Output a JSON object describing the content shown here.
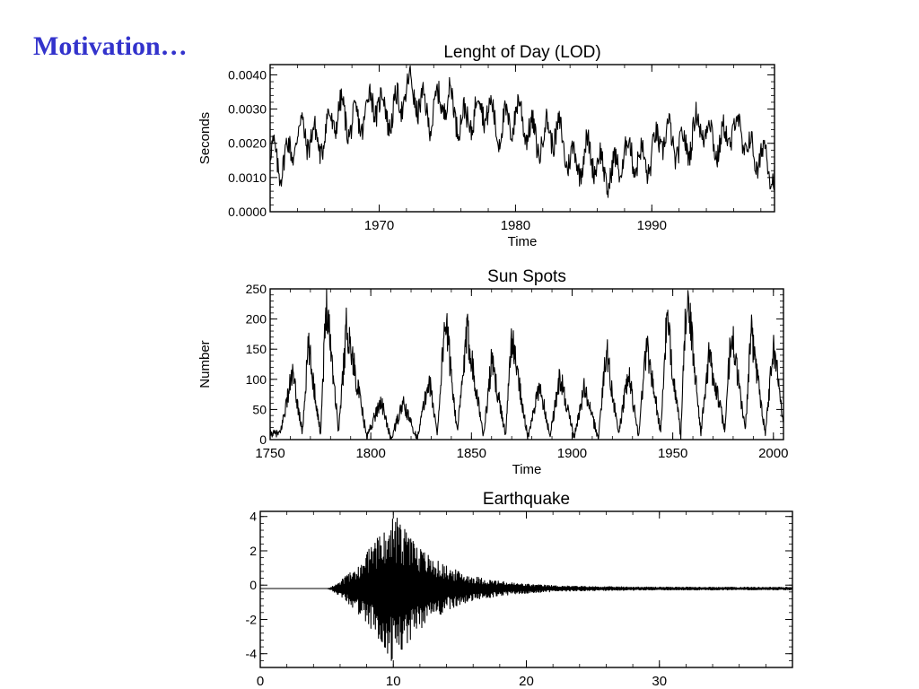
{
  "slide": {
    "title": "Motivation…"
  },
  "chart_data": [
    {
      "type": "line",
      "title": "Lenght of Day (LOD)",
      "xlabel": "Time",
      "ylabel": "Seconds",
      "xlim": [
        1962,
        1999
      ],
      "ylim": [
        0.0,
        0.0043
      ],
      "xticks": [
        1970,
        1980,
        1990
      ],
      "yticks": [
        0.0,
        0.001,
        0.002,
        0.003,
        0.004
      ],
      "ytick_labels": [
        "0.0000",
        "0.0010",
        "0.0020",
        "0.0030",
        "0.0040"
      ],
      "grid": false,
      "series": [
        {
          "x": [
            1962,
            1964,
            1966,
            1968,
            1970,
            1972,
            1974,
            1976,
            1978,
            1980,
            1982,
            1984,
            1986,
            1988,
            1990,
            1992,
            1994,
            1996,
            1998,
            1999
          ],
          "values": [
            0.0015,
            0.002,
            0.0024,
            0.0028,
            0.003,
            0.0033,
            0.0031,
            0.0029,
            0.0028,
            0.0026,
            0.0023,
            0.0018,
            0.0013,
            0.0014,
            0.0018,
            0.0021,
            0.0023,
            0.0022,
            0.0018,
            0.0008
          ],
          "amplitude": 0.0008,
          "color": "#000000"
        }
      ]
    },
    {
      "type": "line",
      "title": "Sun Spots",
      "xlabel": "Time",
      "ylabel": "Number",
      "xlim": [
        1750,
        2005
      ],
      "ylim": [
        0,
        250
      ],
      "xticks": [
        1750,
        1800,
        1850,
        1900,
        1950,
        2000
      ],
      "yticks": [
        0,
        50,
        100,
        150,
        200,
        250
      ],
      "grid": false,
      "series": [
        {
          "peaks": [
            {
              "x": 1761,
              "y": 110
            },
            {
              "x": 1769,
              "y": 155
            },
            {
              "x": 1778,
              "y": 235
            },
            {
              "x": 1788,
              "y": 190
            },
            {
              "x": 1805,
              "y": 65
            },
            {
              "x": 1816,
              "y": 60
            },
            {
              "x": 1829,
              "y": 100
            },
            {
              "x": 1837,
              "y": 205
            },
            {
              "x": 1848,
              "y": 180
            },
            {
              "x": 1860,
              "y": 130
            },
            {
              "x": 1870,
              "y": 170
            },
            {
              "x": 1884,
              "y": 90
            },
            {
              "x": 1894,
              "y": 105
            },
            {
              "x": 1906,
              "y": 85
            },
            {
              "x": 1917,
              "y": 150
            },
            {
              "x": 1928,
              "y": 110
            },
            {
              "x": 1937,
              "y": 160
            },
            {
              "x": 1947,
              "y": 200
            },
            {
              "x": 1957,
              "y": 250
            },
            {
              "x": 1968,
              "y": 140
            },
            {
              "x": 1979,
              "y": 185
            },
            {
              "x": 1989,
              "y": 180
            },
            {
              "x": 2000,
              "y": 160
            }
          ],
          "minima": [
            {
              "x": 1755,
              "y": 10
            },
            {
              "x": 1766,
              "y": 12
            },
            {
              "x": 1775,
              "y": 10
            },
            {
              "x": 1784,
              "y": 12
            },
            {
              "x": 1798,
              "y": 4
            },
            {
              "x": 1810,
              "y": 0
            },
            {
              "x": 1823,
              "y": 2
            },
            {
              "x": 1833,
              "y": 10
            },
            {
              "x": 1843,
              "y": 12
            },
            {
              "x": 1856,
              "y": 5
            },
            {
              "x": 1867,
              "y": 8
            },
            {
              "x": 1878,
              "y": 3
            },
            {
              "x": 1889,
              "y": 6
            },
            {
              "x": 1901,
              "y": 3
            },
            {
              "x": 1913,
              "y": 2
            },
            {
              "x": 1923,
              "y": 8
            },
            {
              "x": 1933,
              "y": 7
            },
            {
              "x": 1944,
              "y": 12
            },
            {
              "x": 1954,
              "y": 5
            },
            {
              "x": 1964,
              "y": 12
            },
            {
              "x": 1976,
              "y": 15
            },
            {
              "x": 1986,
              "y": 15
            },
            {
              "x": 1996,
              "y": 10
            },
            {
              "x": 2005,
              "y": 30
            }
          ],
          "color": "#000000"
        }
      ]
    },
    {
      "type": "line",
      "title": "Earthquake",
      "xlabel": "",
      "ylabel": "",
      "xlim": [
        0,
        40
      ],
      "ylim": [
        -4.8,
        4.3
      ],
      "xticks": [
        0,
        10,
        20,
        30
      ],
      "yticks": [
        -4,
        -2,
        0,
        2,
        4
      ],
      "grid": false,
      "series": [
        {
          "baseline": -0.2,
          "onset": 5.0,
          "peak_time": 10.0,
          "peak_amplitude": 4.4,
          "color": "#000000"
        }
      ]
    }
  ]
}
